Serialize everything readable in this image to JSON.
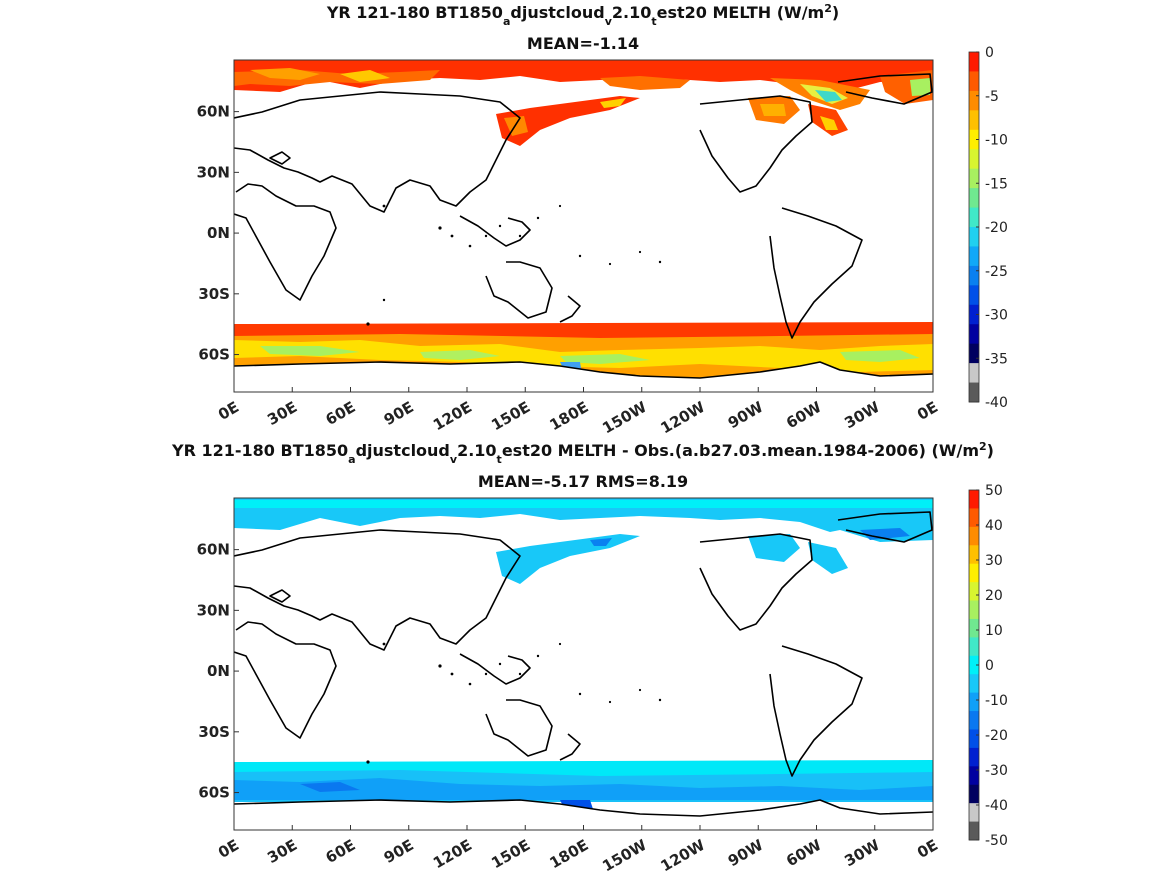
{
  "chart_data": [
    {
      "type": "heatmap",
      "title": "YR 121-180 BT1850",
      "title_parts": [
        "YR 121-180 BT1850",
        "a",
        "djustcloud",
        "v",
        "2.10",
        "t",
        "est20  MELTH (W/m",
        "2",
        ")"
      ],
      "subtitle": "MEAN=-1.14",
      "variable": "MELTH",
      "units": "W/m^2",
      "mean": -1.14,
      "x_ticks": [
        "0E",
        "30E",
        "60E",
        "90E",
        "120E",
        "150E",
        "180E",
        "150W",
        "120W",
        "90W",
        "60W",
        "30W",
        "0E"
      ],
      "y_ticks": [
        "60N",
        "30N",
        "0N",
        "30S",
        "60S"
      ],
      "colorbar": {
        "ticks": [
          "0",
          "-5",
          "-10",
          "-15",
          "-20",
          "-25",
          "-30",
          "-35",
          "-40"
        ],
        "range": [
          -40,
          0
        ],
        "colors": [
          "#ff1a00",
          "#ff5a00",
          "#ff8c00",
          "#ffc000",
          "#ffee00",
          "#d8f530",
          "#a8f060",
          "#70e890",
          "#40e8c8",
          "#20d0f0",
          "#10a8f8",
          "#0a80f0",
          "#0050e8",
          "#0020d0",
          "#0000a0",
          "#000060",
          "#c8c8c8",
          "#5a5a5a"
        ]
      }
    },
    {
      "type": "heatmap",
      "title": "YR 121-180 BT1850",
      "title_parts": [
        "YR 121-180 BT1850",
        "a",
        "djustcloud",
        "v",
        "2.10",
        "t",
        "est20 MELTH - Obs.(a.b27.03.mean.1984-2006) (W/m",
        "2",
        ")"
      ],
      "subtitle": "MEAN=-5.17 RMS=8.19",
      "variable": "MELTH - Obs.",
      "units": "W/m^2",
      "mean": -5.17,
      "rms": 8.19,
      "x_ticks": [
        "0E",
        "30E",
        "60E",
        "90E",
        "120E",
        "150E",
        "180E",
        "150W",
        "120W",
        "90W",
        "60W",
        "30W",
        "0E"
      ],
      "y_ticks": [
        "60N",
        "30N",
        "0N",
        "30S",
        "60S"
      ],
      "colorbar": {
        "ticks": [
          "50",
          "40",
          "30",
          "20",
          "10",
          "0",
          "-10",
          "-20",
          "-30",
          "-40",
          "-50"
        ],
        "range": [
          -50,
          50
        ],
        "colors": [
          "#ff1a00",
          "#ff5a00",
          "#ff8c00",
          "#ffc000",
          "#ffee00",
          "#d8f530",
          "#a8f060",
          "#70e890",
          "#40e8c8",
          "#00f0f8",
          "#18c8f8",
          "#10a0f8",
          "#0a78f0",
          "#0050e8",
          "#0020d0",
          "#0000a0",
          "#000060",
          "#c8c8c8",
          "#5a5a5a"
        ]
      }
    }
  ]
}
